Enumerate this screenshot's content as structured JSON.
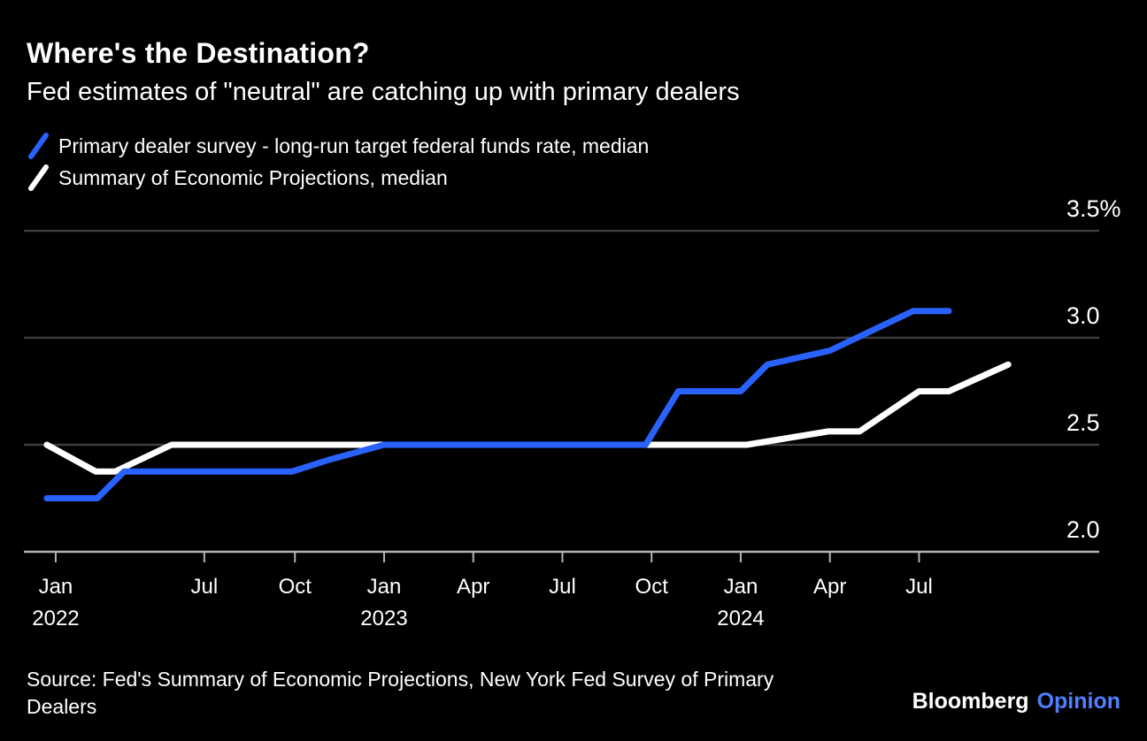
{
  "header": {
    "title": "Where's the Destination?",
    "subtitle": "Fed estimates of \"neutral\" are catching up with primary dealers"
  },
  "legend": [
    {
      "label": "Primary dealer survey - long-run target federal funds rate, median",
      "color": "#2962FF"
    },
    {
      "label": "Summary of Economic Projections, median",
      "color": "#FFFFFF"
    }
  ],
  "footer": {
    "source_line1": "Source: Fed's Summary of Economic Projections, New York Fed Survey of Primary",
    "source_line2": "Dealers",
    "brand": "Bloomberg",
    "brand_suffix": "Opinion"
  },
  "colors": {
    "background": "#000000",
    "gridline": "#3d3d3d",
    "axis": "#b3b3b3",
    "blue_line": "#2962FF",
    "white_line": "#FFFFFF",
    "opinion_blue": "#4f7fff"
  },
  "chart_data": {
    "type": "line",
    "title": "Where's the Destination?",
    "subtitle": "Fed estimates of \"neutral\" are catching up with primary dealers",
    "unit": "%",
    "ylim": [
      2.0,
      3.5
    ],
    "grid": "horizontal-only",
    "legend_position": "top-left",
    "y_ticks": [
      {
        "label": "3.5%",
        "value": 3.5
      },
      {
        "label": "3.0",
        "value": 3.0
      },
      {
        "label": "2.5",
        "value": 2.5
      },
      {
        "label": "2.0",
        "value": 2.0
      }
    ],
    "x_ticks_note": "m = months after Jan 2022 as positioned on the axis",
    "x_ticks": [
      {
        "label": "Jan",
        "year": "2022",
        "m": 0.95
      },
      {
        "label": "Jul",
        "m": 5.95
      },
      {
        "label": "Oct",
        "m": 9
      },
      {
        "label": "Jan",
        "year": "2023",
        "m": 12
      },
      {
        "label": "Apr",
        "m": 15
      },
      {
        "label": "Jul",
        "m": 18
      },
      {
        "label": "Oct",
        "m": 21
      },
      {
        "label": "Jan",
        "year": "2024",
        "m": 24
      },
      {
        "label": "Apr",
        "m": 27
      },
      {
        "label": "Jul",
        "m": 30
      }
    ],
    "series": [
      {
        "name": "Summary of Economic Projections, median",
        "color": "#FFFFFF",
        "points": [
          [
            0.65,
            2.5
          ],
          [
            2.3,
            2.375
          ],
          [
            2.95,
            2.375
          ],
          [
            4.85,
            2.5
          ],
          [
            24.2,
            2.5
          ],
          [
            26.95,
            2.5625
          ],
          [
            28,
            2.5625
          ],
          [
            30,
            2.75
          ],
          [
            31,
            2.75
          ],
          [
            33,
            2.875
          ]
        ]
      },
      {
        "name": "Primary dealer survey - long-run target federal funds rate, median",
        "color": "#2962FF",
        "points": [
          [
            0.65,
            2.25
          ],
          [
            2.35,
            2.25
          ],
          [
            3.25,
            2.375
          ],
          [
            8.9,
            2.375
          ],
          [
            10.15,
            2.43
          ],
          [
            12,
            2.5
          ],
          [
            20.8,
            2.5
          ],
          [
            21.9,
            2.75
          ],
          [
            24,
            2.75
          ],
          [
            24.9,
            2.875
          ],
          [
            27,
            2.94
          ],
          [
            29.8,
            3.125
          ],
          [
            31,
            3.125
          ]
        ]
      }
    ]
  }
}
